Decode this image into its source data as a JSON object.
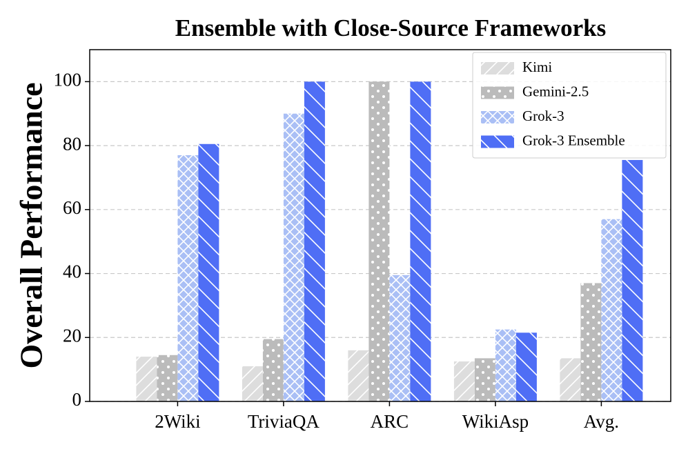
{
  "chart_data": {
    "type": "bar",
    "title": "Ensemble with Close-Source Frameworks",
    "y_label": "Overall Performance",
    "categories": [
      "2Wiki",
      "TriviaQA",
      "ARC",
      "WikiAsp",
      "Avg."
    ],
    "series": [
      {
        "name": "Kimi",
        "color": "#dddddd",
        "hatch": "/",
        "values": [
          14,
          11,
          16,
          12.5,
          13.5
        ]
      },
      {
        "name": "Gemini-2.5",
        "color": "#bbbbbb",
        "hatch": "o",
        "values": [
          14.5,
          19.5,
          100,
          13.5,
          37
        ]
      },
      {
        "name": "Grok-3",
        "color": "#aabff5",
        "hatch": "x",
        "values": [
          77,
          90,
          39.5,
          22.5,
          57
        ]
      },
      {
        "name": "Grok-3 Ensemble",
        "color": "#4f6ef5",
        "hatch": "\\",
        "values": [
          80.5,
          100,
          100,
          21.5,
          75.5
        ]
      }
    ],
    "ylim": [
      0,
      110
    ],
    "yticks": [
      0,
      20,
      40,
      60,
      80,
      100
    ],
    "grid": true,
    "legend": "upper right"
  }
}
